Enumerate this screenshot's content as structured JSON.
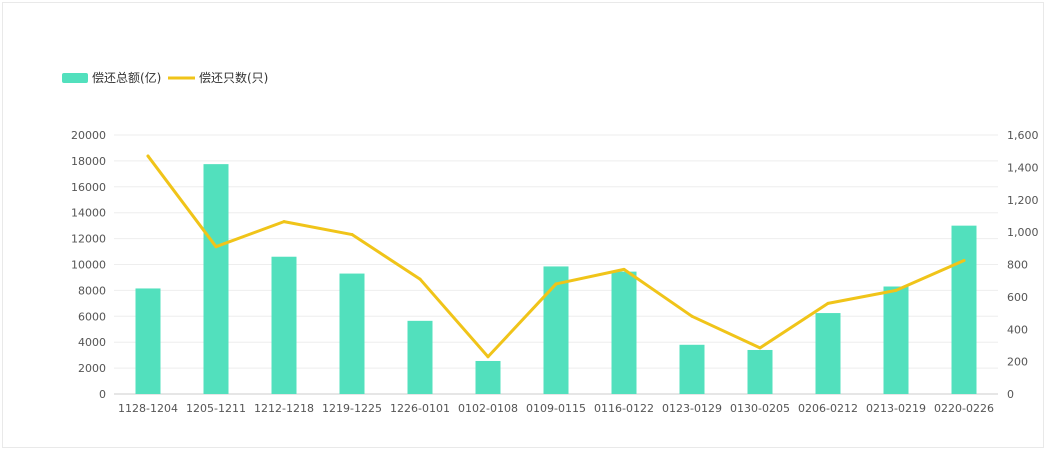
{
  "chart_data": {
    "type": "bar",
    "categories": [
      "1128-1204",
      "1205-1211",
      "1212-1218",
      "1219-1225",
      "1226-0101",
      "0102-0108",
      "0109-0115",
      "0116-0122",
      "0123-0129",
      "0130-0205",
      "0206-0212",
      "0213-0219",
      "0220-0226"
    ],
    "series": [
      {
        "name": "偿还总额(亿)",
        "type": "bar",
        "axis": "left",
        "color": "#52e0bd",
        "values": [
          8150,
          17750,
          10600,
          9300,
          5650,
          2550,
          9850,
          9450,
          3800,
          3400,
          6250,
          8300,
          13000
        ]
      },
      {
        "name": "偿还只数(只)",
        "type": "line",
        "axis": "right",
        "color": "#f0c419",
        "values": [
          1470,
          910,
          1065,
          985,
          710,
          230,
          680,
          770,
          480,
          285,
          560,
          640,
          825
        ]
      }
    ],
    "y_left": {
      "min": 0,
      "max": 20000,
      "ticks": [
        "0",
        "2000",
        "4000",
        "6000",
        "8000",
        "10000",
        "12000",
        "14000",
        "16000",
        "18000",
        "20000"
      ]
    },
    "y_right": {
      "min": 0,
      "max": 1600,
      "ticks": [
        "0",
        "200",
        "400",
        "600",
        "800",
        "1,000",
        "1,200",
        "1,400",
        "1,600"
      ]
    },
    "grid": true,
    "legend_position": "top-left"
  }
}
